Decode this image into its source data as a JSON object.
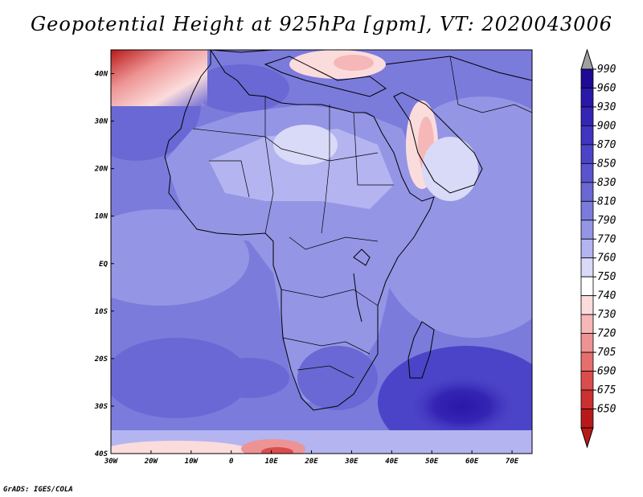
{
  "title": "Geopotential Height at 925hPa [gpm], VT: 2020043006",
  "credit": "GrADS: IGES/COLA",
  "map": {
    "lon_range": [
      -30,
      75
    ],
    "lat_range": [
      -40,
      45
    ],
    "lon_ticks": [
      "30W",
      "20W",
      "10W",
      "0",
      "10E",
      "20E",
      "30E",
      "40E",
      "50E",
      "60E",
      "70E"
    ],
    "lat_ticks": [
      "40N",
      "30N",
      "20N",
      "10N",
      "EQ",
      "10S",
      "20S",
      "30S",
      "40S"
    ]
  },
  "colorbar": {
    "labels": [
      "990",
      "960",
      "930",
      "900",
      "870",
      "850",
      "830",
      "810",
      "790",
      "770",
      "760",
      "750",
      "740",
      "730",
      "720",
      "705",
      "690",
      "675",
      "650"
    ],
    "top_triangle_color": "#a0a0a0",
    "colors": [
      "#1e0a96",
      "#2a18a8",
      "#3525b4",
      "#4134c0",
      "#4c44c8",
      "#5a55cc",
      "#6a68d4",
      "#7b7bdc",
      "#9595e6",
      "#b4b4f0",
      "#d9d9f8",
      "#ffffff",
      "#fbdcdc",
      "#f5b7b7",
      "#ee9393",
      "#e56e6e",
      "#db4d4d",
      "#cc3030",
      "#b81a1a"
    ],
    "bottom_triangle_color": "#b81a1a"
  }
}
